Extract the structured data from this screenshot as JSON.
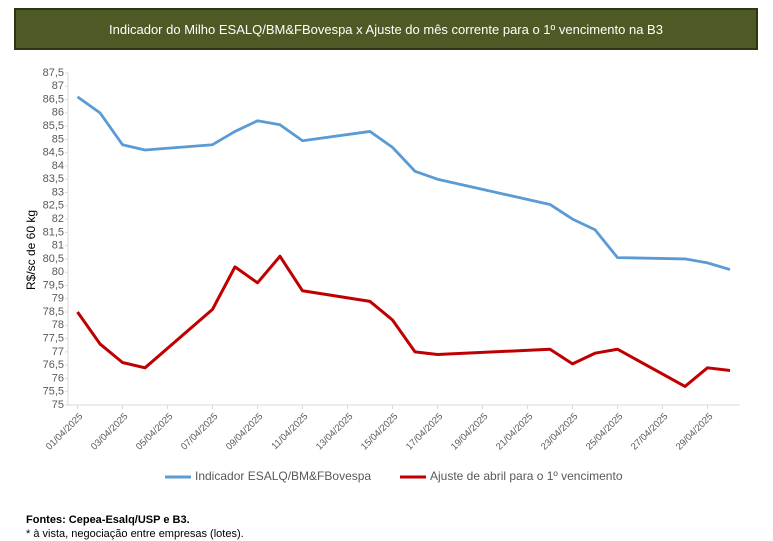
{
  "chart_data": {
    "type": "line",
    "title": "Indicador do Milho ESALQ/BM&FBovespa x Ajuste do mês corrente para o 1º vencimento na B3",
    "y_label": "R$/sc de 60 kg",
    "x": [
      "01/04/2025",
      "02/04/2025",
      "03/04/2025",
      "04/04/2025",
      "07/04/2025",
      "08/04/2025",
      "09/04/2025",
      "10/04/2025",
      "11/04/2025",
      "14/04/2025",
      "15/04/2025",
      "16/04/2025",
      "17/04/2025",
      "22/04/2025",
      "23/04/2025",
      "24/04/2025",
      "25/04/2025",
      "28/04/2025",
      "29/04/2025",
      "30/04/2025"
    ],
    "xticks": [
      "01/04/2025",
      "03/04/2025",
      "05/04/2025",
      "07/04/2025",
      "09/04/2025",
      "11/04/2025",
      "13/04/2025",
      "15/04/2025",
      "17/04/2025",
      "19/04/2025",
      "21/04/2025",
      "23/04/2025",
      "25/04/2025",
      "27/04/2025",
      "29/04/2025"
    ],
    "series": [
      {
        "name": "Indicador ESALQ/BM&FBovespa",
        "color": "#5b9bd5",
        "values": [
          86.6,
          86.0,
          84.8,
          84.6,
          84.8,
          85.3,
          85.7,
          85.55,
          84.95,
          85.3,
          84.7,
          83.8,
          83.5,
          82.55,
          82.0,
          81.6,
          80.55,
          80.5,
          80.35,
          80.1
        ]
      },
      {
        "name": "Ajuste de abril para o 1º vencimento",
        "color": "#c00000",
        "values": [
          78.5,
          77.3,
          76.6,
          76.4,
          78.6,
          80.2,
          79.6,
          80.6,
          79.3,
          78.9,
          78.2,
          77.0,
          76.9,
          77.1,
          76.55,
          76.95,
          77.1,
          75.7,
          76.4,
          76.3
        ]
      }
    ],
    "ylim": [
      75,
      87.5
    ],
    "yticks": [
      75,
      {
        "value": 75.5,
        "label": "75,5"
      },
      76,
      {
        "value": 76.5,
        "label": "76,5"
      },
      77,
      {
        "value": 77.5,
        "label": "77,5"
      },
      78,
      {
        "value": 78.5,
        "label": "78,5"
      },
      79,
      {
        "value": 79.5,
        "label": "79,5"
      },
      80,
      {
        "value": 80.5,
        "label": "80,5"
      },
      81,
      {
        "value": 81.5,
        "label": "81,5"
      },
      82,
      {
        "value": 82.5,
        "label": "82,5"
      },
      83,
      {
        "value": 83.5,
        "label": "83,5"
      },
      84,
      {
        "value": 84.5,
        "label": "84,5"
      },
      85,
      {
        "value": 85.5,
        "label": "85,5"
      },
      86,
      {
        "value": 86.5,
        "label": "86,5"
      },
      87,
      {
        "value": 87.5,
        "label": "87,5"
      }
    ],
    "grid": false,
    "legend": "bottom",
    "source_label": "Fontes",
    "source_text": ": Cepea-Esalq/USP e B3.",
    "note": "*  à vista, negociação entre empresas (lotes)."
  }
}
